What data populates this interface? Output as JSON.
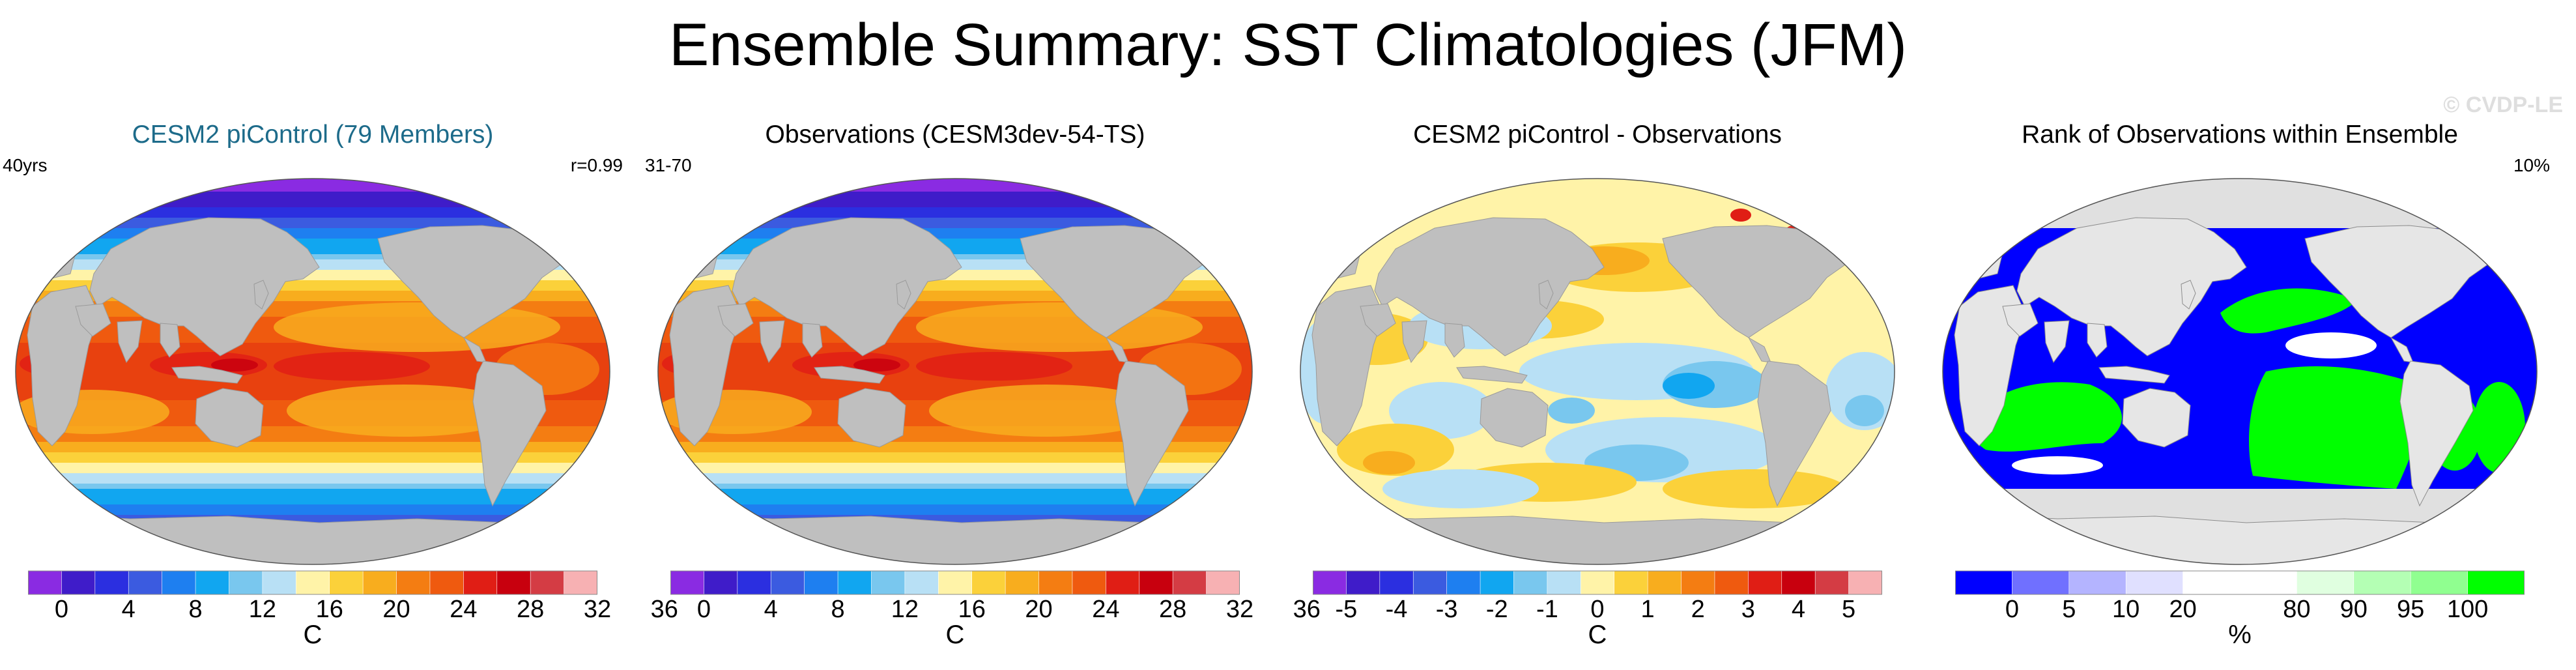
{
  "title": "Ensemble Summary: SST Climatologies (JFM)",
  "watermark": "© CVDP-LE",
  "chart_data": [
    {
      "type": "heatmap",
      "subtype": "global-map",
      "title": "CESM2 piControl (79 Members)",
      "title_color": "#1d6b8a",
      "left_label": "40yrs",
      "right_label": "r=0.99",
      "field": "sst_mean",
      "colorbar": {
        "unit": "C",
        "colors": [
          "#8a2be2",
          "#3f1cc9",
          "#2b2fe0",
          "#3b5be0",
          "#1e7ff0",
          "#11a6f0",
          "#79c7ee",
          "#b8e0f5",
          "#fff3a8",
          "#fbd13a",
          "#f8ad1e",
          "#f47d12",
          "#ef5a0f",
          "#e01e15",
          "#c8000e",
          "#d43c44",
          "#f7b1b3"
        ],
        "ticks": [
          "0",
          "4",
          "8",
          "12",
          "16",
          "20",
          "24",
          "28",
          "32",
          "36"
        ],
        "tick_positions": [
          1,
          3,
          5,
          7,
          9,
          11,
          13,
          15,
          17,
          19
        ]
      }
    },
    {
      "type": "heatmap",
      "subtype": "global-map",
      "title": "Observations (CESM3dev-54-TS)",
      "title_color": "#000000",
      "left_label": "31-70",
      "right_label": "",
      "field": "sst_mean",
      "colorbar": {
        "unit": "C",
        "colors": [
          "#8a2be2",
          "#3f1cc9",
          "#2b2fe0",
          "#3b5be0",
          "#1e7ff0",
          "#11a6f0",
          "#79c7ee",
          "#b8e0f5",
          "#fff3a8",
          "#fbd13a",
          "#f8ad1e",
          "#f47d12",
          "#ef5a0f",
          "#e01e15",
          "#c8000e",
          "#d43c44",
          "#f7b1b3"
        ],
        "ticks": [
          "0",
          "4",
          "8",
          "12",
          "16",
          "20",
          "24",
          "28",
          "32",
          "36"
        ],
        "tick_positions": [
          1,
          3,
          5,
          7,
          9,
          11,
          13,
          15,
          17,
          19
        ]
      }
    },
    {
      "type": "heatmap",
      "subtype": "global-map",
      "title": "CESM2 piControl - Observations",
      "title_color": "#000000",
      "left_label": "",
      "right_label": "",
      "field": "sst_difference",
      "colorbar": {
        "unit": "C",
        "colors": [
          "#8a2be2",
          "#3f1cc9",
          "#2b2fe0",
          "#3b5be0",
          "#1e7ff0",
          "#11a6f0",
          "#79c7ee",
          "#b8e0f5",
          "#fff3a8",
          "#fbd13a",
          "#f8ad1e",
          "#f47d12",
          "#ef5a0f",
          "#e01e15",
          "#c8000e",
          "#d43c44",
          "#f7b1b3"
        ],
        "ticks": [
          "-5",
          "-4",
          "-3",
          "-2",
          "-1",
          "0",
          "1",
          "2",
          "3",
          "4",
          "5"
        ],
        "tick_positions": [
          1,
          2.5,
          4,
          5.5,
          7,
          8.5,
          10,
          11.5,
          13,
          14.5,
          16
        ]
      }
    },
    {
      "type": "heatmap",
      "subtype": "global-map",
      "title": "Rank of Observations within Ensemble",
      "title_color": "#000000",
      "left_label": "",
      "right_label": "10%",
      "field": "rank_percent",
      "colorbar": {
        "unit": "%",
        "colors": [
          "#0000ff",
          "#7070ff",
          "#b4b4ff",
          "#e0e0ff",
          "#ffffff",
          "#ffffff",
          "#e0ffe0",
          "#b4ffb4",
          "#90ff90",
          "#00ff00"
        ],
        "ticks": [
          "0",
          "5",
          "10",
          "20",
          "80",
          "90",
          "95",
          "100"
        ],
        "tick_positions": [
          1,
          2,
          3,
          4,
          6,
          7,
          8,
          9
        ]
      }
    }
  ]
}
